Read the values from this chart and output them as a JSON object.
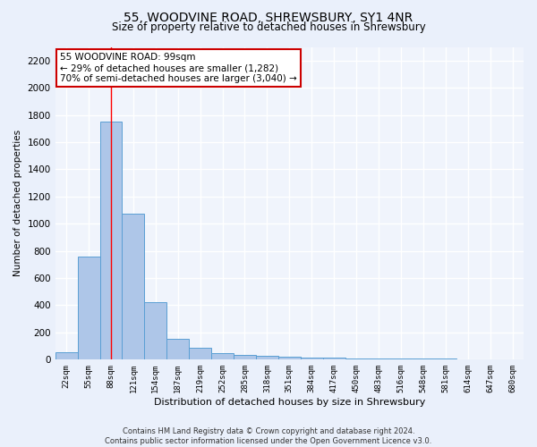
{
  "title": "55, WOODVINE ROAD, SHREWSBURY, SY1 4NR",
  "subtitle": "Size of property relative to detached houses in Shrewsbury",
  "xlabel": "Distribution of detached houses by size in Shrewsbury",
  "ylabel": "Number of detached properties",
  "footer_line1": "Contains HM Land Registry data © Crown copyright and database right 2024.",
  "footer_line2": "Contains public sector information licensed under the Open Government Licence v3.0.",
  "bin_labels": [
    "22sqm",
    "55sqm",
    "88sqm",
    "121sqm",
    "154sqm",
    "187sqm",
    "219sqm",
    "252sqm",
    "285sqm",
    "318sqm",
    "351sqm",
    "384sqm",
    "417sqm",
    "450sqm",
    "483sqm",
    "516sqm",
    "548sqm",
    "581sqm",
    "614sqm",
    "647sqm",
    "680sqm"
  ],
  "bar_heights": [
    55,
    760,
    1750,
    1075,
    420,
    155,
    85,
    45,
    35,
    28,
    20,
    18,
    15,
    12,
    10,
    8,
    7,
    6,
    5,
    4,
    3
  ],
  "bar_color": "#aec6e8",
  "bar_edge_color": "#5a9fd4",
  "ylim": [
    0,
    2300
  ],
  "yticks": [
    0,
    200,
    400,
    600,
    800,
    1000,
    1200,
    1400,
    1600,
    1800,
    2000,
    2200
  ],
  "red_line_x": 2,
  "annotation_line1": "55 WOODVINE ROAD: 99sqm",
  "annotation_line2": "← 29% of detached houses are smaller (1,282)",
  "annotation_line3": "70% of semi-detached houses are larger (3,040) →",
  "annotation_box_color": "#ffffff",
  "annotation_border_color": "#cc0000",
  "bg_color": "#eaf0fb",
  "plot_bg_color": "#f0f4fc",
  "grid_color": "#ffffff",
  "title_fontsize": 10,
  "subtitle_fontsize": 8.5
}
